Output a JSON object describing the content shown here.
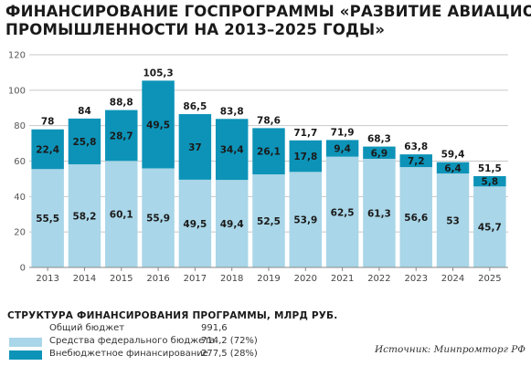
{
  "title_lines": [
    "ФИНАНСИРОВАНИЕ ГОСПРОГРАММЫ «РАЗВИТИЕ АВИАЦИОННОЙ",
    "ПРОМЫШЛЕННОСТИ НА 2013–2025 ГОДЫ»"
  ],
  "colors": {
    "federal": "#a9d6e8",
    "extrabudget": "#0d93b8",
    "grid": "#c8c8c8",
    "text": "#1a1a1a"
  },
  "chart_data": {
    "type": "bar",
    "stacked": true,
    "categories": [
      "2013",
      "2014",
      "2015",
      "2016",
      "2017",
      "2018",
      "2019",
      "2020",
      "2021",
      "2022",
      "2023",
      "2024",
      "2025"
    ],
    "series": [
      {
        "name": "Средства федерального бюджета",
        "values": [
          55.5,
          58.2,
          60.1,
          55.9,
          49.5,
          49.4,
          52.5,
          53.9,
          62.5,
          61.3,
          56.6,
          53,
          45.7
        ]
      },
      {
        "name": "Внебюджетное финансирование",
        "values": [
          22.4,
          25.8,
          28.7,
          49.5,
          37,
          34.4,
          26.1,
          17.8,
          9.4,
          6.9,
          7.2,
          6.4,
          5.8
        ]
      }
    ],
    "totals": [
      78,
      84,
      88.8,
      105.3,
      86.5,
      83.8,
      78.6,
      71.7,
      71.9,
      68.3,
      63.8,
      59.4,
      51.5
    ],
    "bottom_labels": [
      "55,5",
      "58,2",
      "60,1",
      "55,9",
      "49,5",
      "49,4",
      "52,5",
      "53,9",
      "62,5",
      "61,3",
      "56,6",
      "53",
      "45,7"
    ],
    "top_labels": [
      "22,4",
      "25,8",
      "28,7",
      "49,5",
      "37",
      "34,4",
      "26,1",
      "17,8",
      "9,4",
      "6,9",
      "7,2",
      "6,4",
      "5,8"
    ],
    "total_labels": [
      "78",
      "84",
      "88,8",
      "105,3",
      "86,5",
      "83,8",
      "78,6",
      "71,7",
      "71,9",
      "68,3",
      "63,8",
      "59,4",
      "51,5"
    ],
    "ylim": [
      0,
      120
    ],
    "yticks": [
      0,
      20,
      40,
      60,
      80,
      100,
      120
    ],
    "grid": true,
    "xlabel": "",
    "ylabel": ""
  },
  "legend": {
    "title": "СТРУКТУРА ФИНАНСИРОВАНИЯ ПРОГРАММЫ, МЛРД РУБ.",
    "rows": [
      {
        "label": "Общий бюджет",
        "value": "991,6",
        "swatch": "none"
      },
      {
        "label": "Средства федерального бюджета",
        "value": "714,2 (72%)",
        "swatch": "federal"
      },
      {
        "label": "Внебюджетное финансирование",
        "value": "277,5 (28%)",
        "swatch": "extrabudget"
      }
    ]
  },
  "source": "Источник: Минпромторг РФ"
}
